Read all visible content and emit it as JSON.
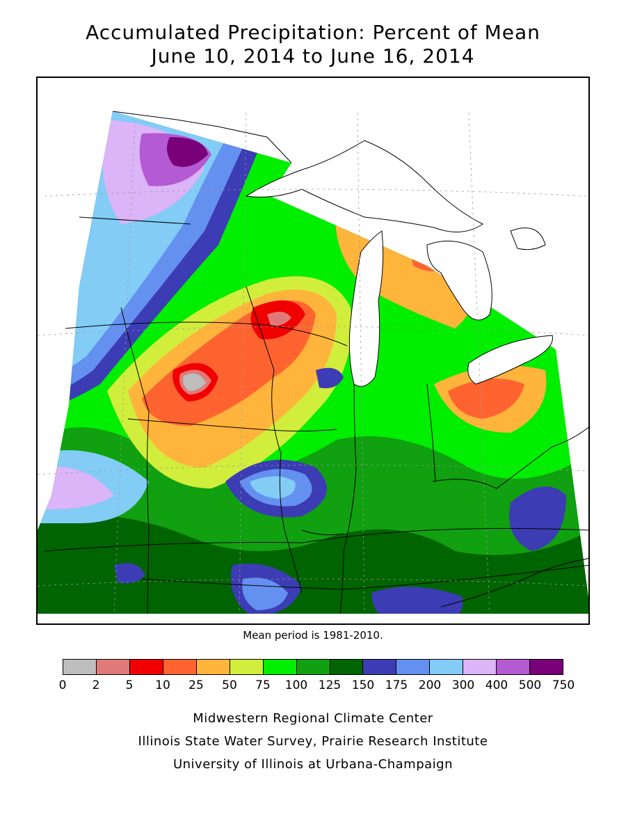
{
  "title": {
    "line1": "Accumulated Precipitation: Percent of Mean",
    "line2": "June 10, 2014 to June 16, 2014"
  },
  "note": "Mean period is 1981-2010.",
  "legend": {
    "colors": [
      "#bebebe",
      "#e07a78",
      "#f00000",
      "#ff6430",
      "#ffb43c",
      "#d2ee3c",
      "#00ee00",
      "#10a010",
      "#006400",
      "#3c3cb4",
      "#6490f0",
      "#82ccf6",
      "#dcb4f8",
      "#b45ad2",
      "#780078"
    ],
    "ticks": [
      "0",
      "2",
      "5",
      "10",
      "25",
      "50",
      "75",
      "100",
      "125",
      "150",
      "175",
      "200",
      "300",
      "400",
      "500",
      "750"
    ]
  },
  "credits": {
    "line1": "Midwestern Regional Climate Center",
    "line2": "Illinois State Water Survey, Prairie Research Institute",
    "line3": "University of Illinois at Urbana-Champaign"
  }
}
